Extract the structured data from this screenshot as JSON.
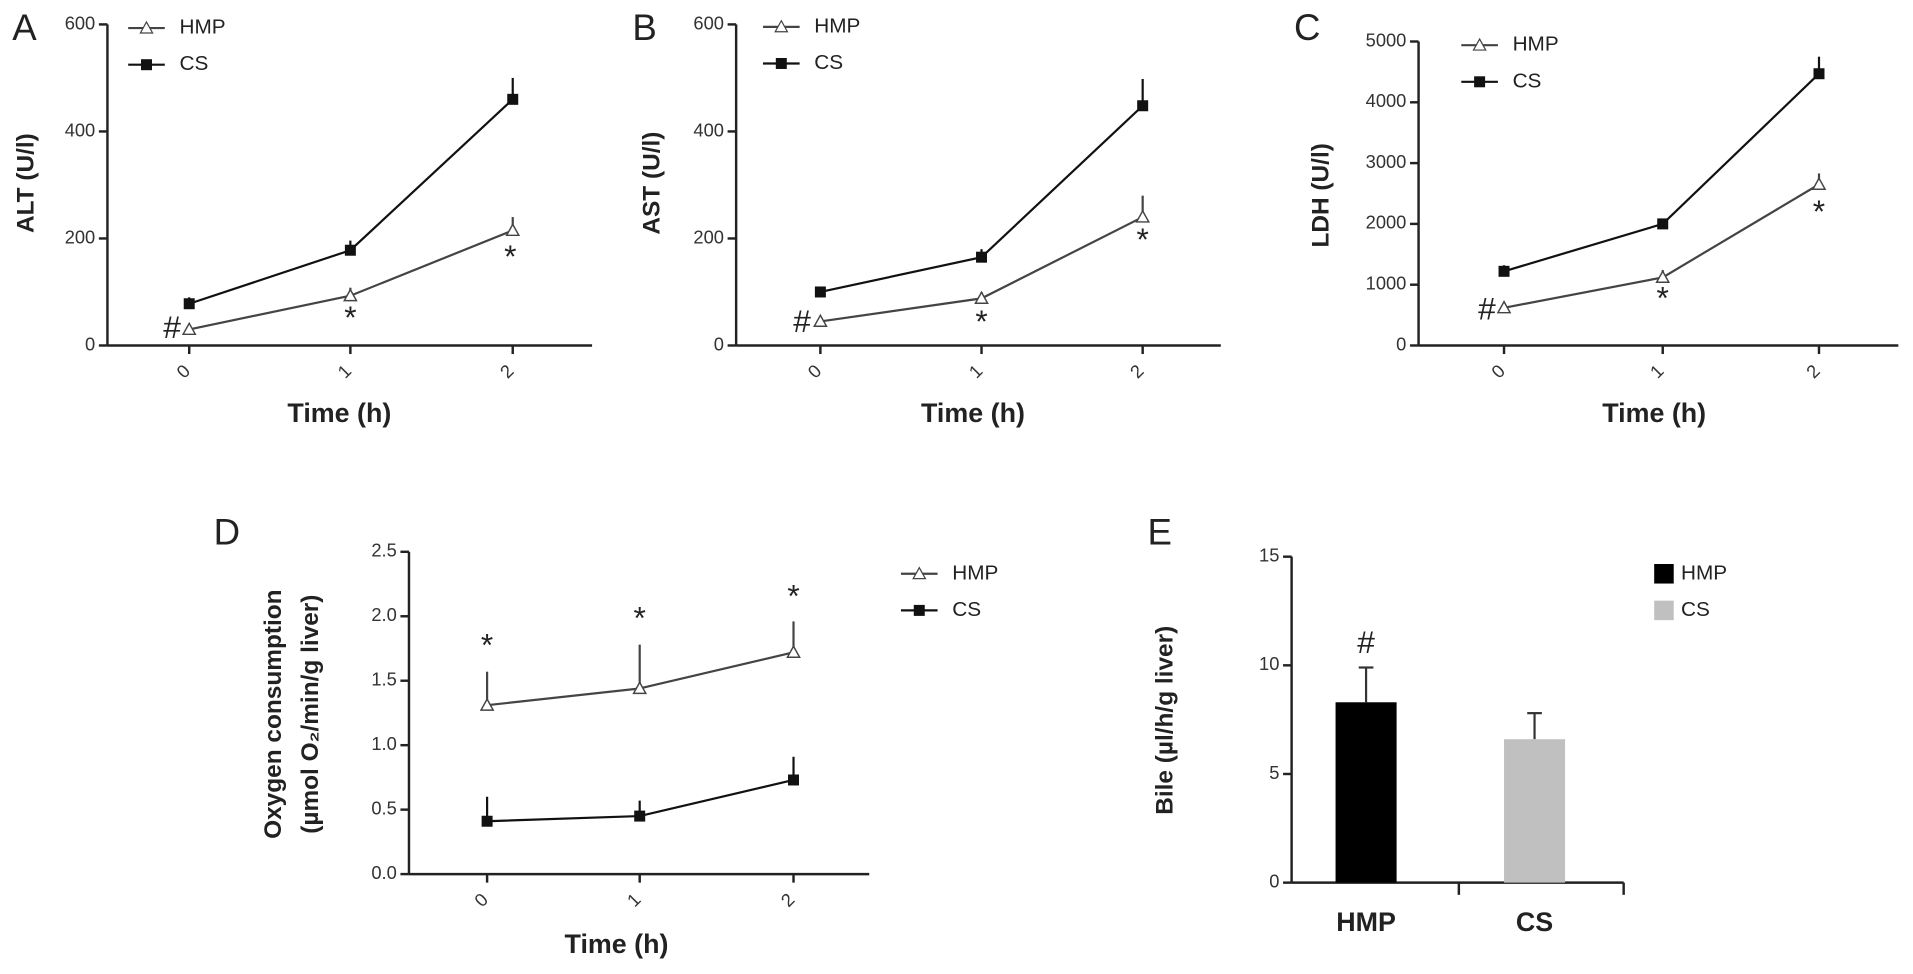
{
  "chart_data": [
    {
      "type": "line",
      "label": "A",
      "ylabel": "ALT (U/l)",
      "xlabel": "Time (h)",
      "categories": [
        "0",
        "1",
        "2"
      ],
      "series": [
        {
          "name": "HMP",
          "color": "#444444",
          "marker": "triangle",
          "values": [
            30,
            93,
            215
          ],
          "errors": [
            5,
            15,
            25
          ]
        },
        {
          "name": "CS",
          "color": "#111111",
          "marker": "square",
          "values": [
            78,
            178,
            460
          ],
          "errors": [
            12,
            18,
            40
          ]
        }
      ],
      "ylim": [
        0,
        600
      ],
      "yticks": [
        0,
        200,
        400,
        600
      ],
      "annotations": [
        "#",
        "*",
        "*"
      ]
    },
    {
      "type": "line",
      "label": "B",
      "ylabel": "AST (U/l)",
      "xlabel": "Time (h)",
      "categories": [
        "0",
        "1",
        "2"
      ],
      "series": [
        {
          "name": "HMP",
          "color": "#444444",
          "marker": "triangle",
          "values": [
            45,
            88,
            240
          ],
          "errors": [
            5,
            12,
            40
          ]
        },
        {
          "name": "CS",
          "color": "#111111",
          "marker": "square",
          "values": [
            100,
            165,
            448
          ],
          "errors": [
            8,
            15,
            50
          ]
        }
      ],
      "ylim": [
        0,
        600
      ],
      "yticks": [
        0,
        200,
        400,
        600
      ],
      "annotations": [
        "#",
        "*",
        "*"
      ]
    },
    {
      "type": "line",
      "label": "C",
      "ylabel": "LDH (U/l)",
      "xlabel": "Time (h)",
      "categories": [
        "0",
        "1",
        "2"
      ],
      "series": [
        {
          "name": "HMP",
          "color": "#444444",
          "marker": "triangle",
          "values": [
            620,
            1120,
            2650
          ],
          "errors": [
            100,
            120,
            180
          ]
        },
        {
          "name": "CS",
          "color": "#111111",
          "marker": "square",
          "values": [
            1220,
            2000,
            4470
          ],
          "errors": [
            100,
            80,
            280
          ]
        }
      ],
      "ylim": [
        0,
        5000
      ],
      "yticks": [
        0,
        1000,
        2000,
        3000,
        4000,
        5000
      ],
      "annotations": [
        "#",
        "*",
        "*"
      ]
    },
    {
      "type": "line",
      "label": "D",
      "ylabel": [
        "Oxygen consumption",
        "(µmol O₂/min/g liver)"
      ],
      "xlabel": "Time (h)",
      "categories": [
        "0",
        "1",
        "2"
      ],
      "series": [
        {
          "name": "HMP",
          "color": "#444444",
          "marker": "triangle",
          "values": [
            1.31,
            1.44,
            1.72
          ],
          "errors": [
            0.26,
            0.34,
            0.24
          ]
        },
        {
          "name": "CS",
          "color": "#111111",
          "marker": "square",
          "values": [
            0.41,
            0.45,
            0.73
          ],
          "errors": [
            0.19,
            0.12,
            0.18
          ]
        }
      ],
      "ylim": [
        0,
        2.5
      ],
      "yticks": [
        {
          "value": 0,
          "label": "0.0"
        },
        0.5,
        {
          "value": 1,
          "label": "1.0"
        },
        1.5,
        {
          "value": 2,
          "label": "2.0"
        },
        2.5
      ],
      "annotations": [
        "*",
        "*",
        "*"
      ]
    },
    {
      "type": "bar",
      "label": "E",
      "ylabel": "Bile (µl/h/g liver)",
      "categories": [
        "HMP",
        "CS"
      ],
      "values": [
        8.3,
        6.6
      ],
      "errors": [
        1.6,
        1.2
      ],
      "colors": [
        "#000000",
        "#c0c0c0"
      ],
      "ylim": [
        0,
        15
      ],
      "yticks": [
        0,
        5,
        10,
        15
      ],
      "annotations": [
        "#"
      ]
    }
  ]
}
